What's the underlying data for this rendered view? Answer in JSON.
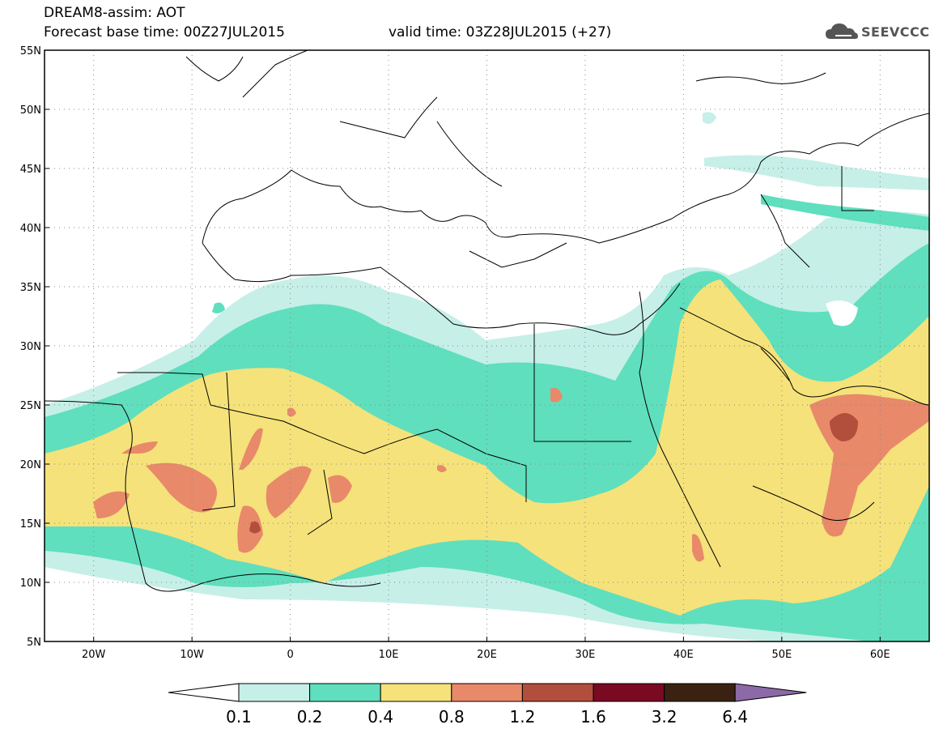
{
  "header": {
    "line1": "DREAM8-assim: AOT",
    "line2": "Forecast base time: 00Z27JUL2015",
    "line3": "valid time: 03Z28JUL2015 (+27)",
    "logo_text": "SEEVCCC"
  },
  "map": {
    "lon_range": [
      -25,
      65
    ],
    "lat_range": [
      5,
      55
    ],
    "grid": true,
    "lat_labels": [
      "55N",
      "50N",
      "45N",
      "40N",
      "35N",
      "30N",
      "25N",
      "20N",
      "15N",
      "10N",
      "5N"
    ],
    "lon_labels": [
      "20W",
      "10W",
      "0",
      "10E",
      "20E",
      "30E",
      "40E",
      "50E",
      "60E"
    ]
  },
  "legend": {
    "levels": [
      "0.1",
      "0.2",
      "0.4",
      "0.8",
      "1.2",
      "1.6",
      "3.2",
      "6.4"
    ],
    "colors": {
      "below": "#ffffff",
      "c1": "#c6efe8",
      "c2": "#5fdfbd",
      "c3": "#f5e27a",
      "c4": "#e8896a",
      "c5": "#b24e3c",
      "c6": "#7a0a22",
      "c7": "#3a2212",
      "above": "#8c6aa8"
    }
  }
}
